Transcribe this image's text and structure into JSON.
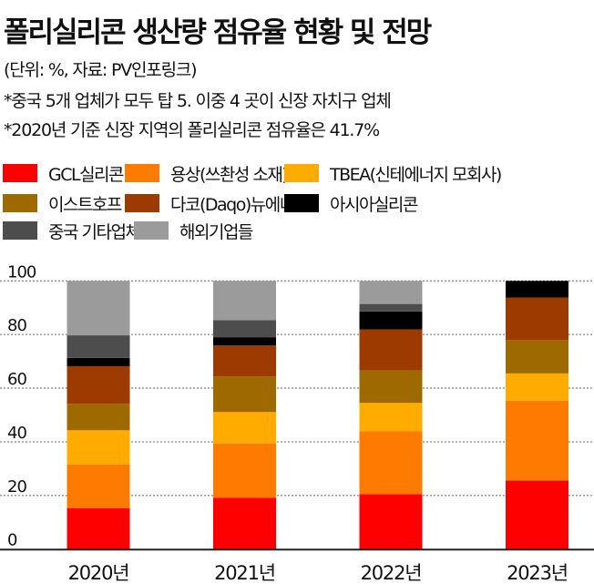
{
  "header": {
    "title": "폴리실리콘 생산량 점유율 현황 및 전망",
    "unit_note": "(단위: %, 자료: PV인포링크)",
    "note1": "*중국 5개 업체가 모두 탑 5. 이중 4 곳이 신장 자치구 업체",
    "note2": "*2020년 기준 신장 지역의 폴리실리콘 점유율은 41.7%"
  },
  "chart_data": {
    "type": "bar",
    "stacked": true,
    "title": "폴리실리콘 생산량 점유율 현황 및 전망",
    "xlabel": "",
    "ylabel": "%",
    "ylim": [
      0,
      100
    ],
    "yticks": [
      "0",
      "20",
      "40",
      "60",
      "80",
      "100"
    ],
    "grid": true,
    "legend_position": "top",
    "categories": [
      "2020년",
      "2021년",
      "2022년",
      "2023년"
    ],
    "series": [
      {
        "name": "GCL실리콘",
        "color": "#ff0000",
        "values": [
          15.3,
          19.1,
          20.5,
          25.6
        ]
      },
      {
        "name": "용상(쓰촨성 소재)",
        "color": "#ff7b00",
        "values": [
          16.2,
          20.3,
          23.4,
          29.7
        ]
      },
      {
        "name": "TBEA(신테에너지 모회사)",
        "color": "#ffab00",
        "values": [
          12.8,
          11.7,
          10.6,
          10.2
        ]
      },
      {
        "name": "이스트호프",
        "color": "#9e6a00",
        "values": [
          9.9,
          13.3,
          12.1,
          12.4
        ]
      },
      {
        "name": "다코(Daqo)뉴에너지",
        "color": "#9c3a00",
        "values": [
          14.0,
          11.5,
          15.3,
          15.9
        ]
      },
      {
        "name": "아시아실리콘",
        "color": "#000000",
        "values": [
          3.1,
          3.1,
          6.7,
          6.2
        ]
      },
      {
        "name": "중국 기타업체",
        "color": "#4d4d4d",
        "values": [
          8.4,
          6.4,
          2.8,
          0
        ]
      },
      {
        "name": "해외기업들",
        "color": "#9b9b9b",
        "values": [
          20.3,
          14.6,
          8.6,
          0
        ]
      }
    ]
  }
}
